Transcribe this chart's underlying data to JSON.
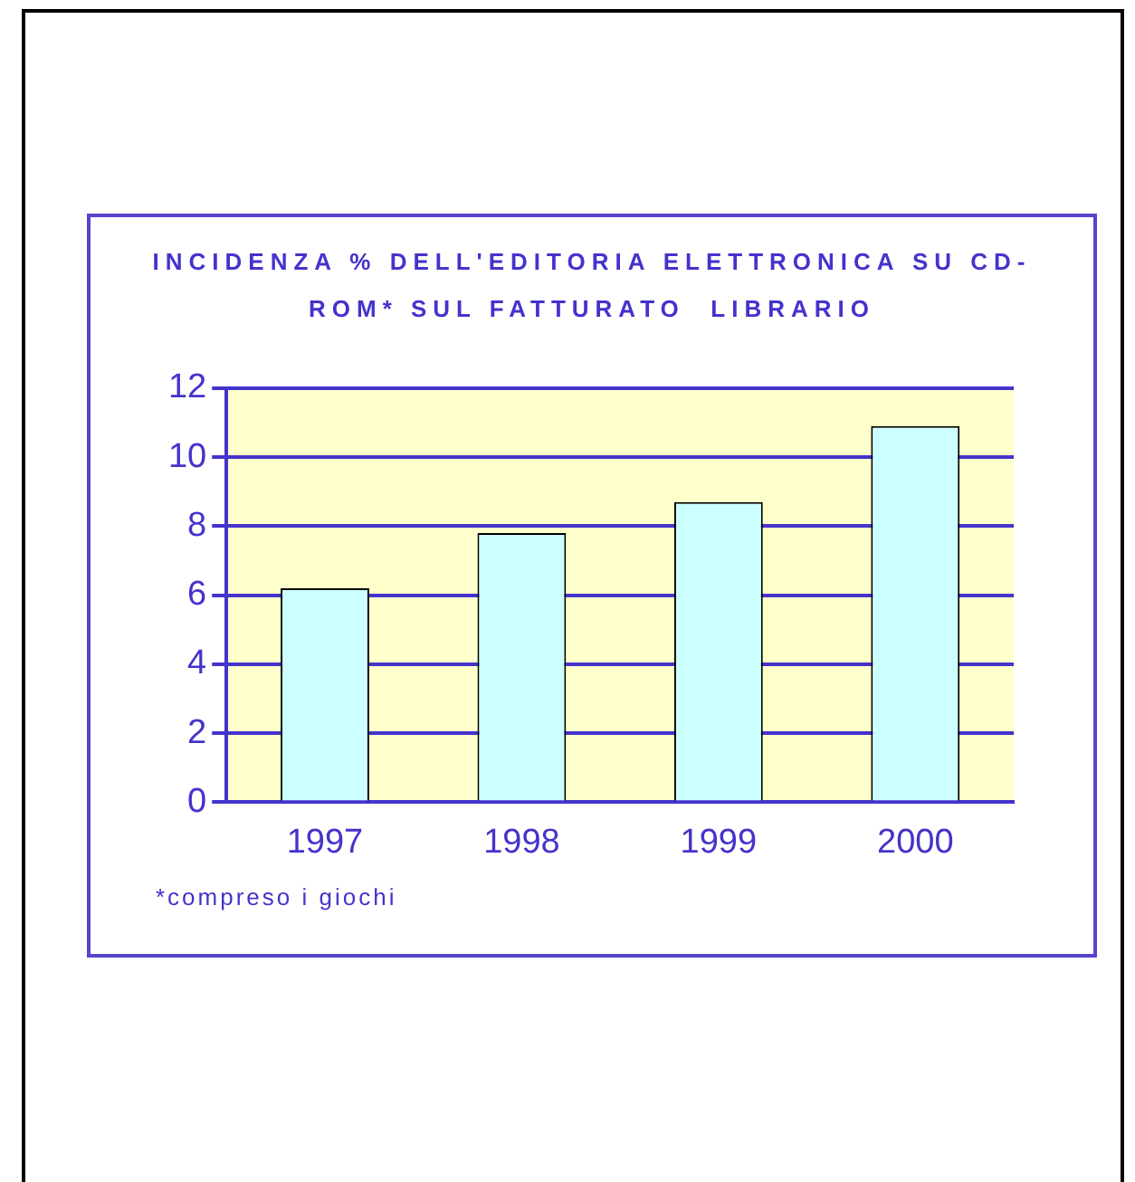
{
  "chart_data": {
    "type": "bar",
    "title": "INCIDENZA % DELL'EDITORIA ELETTRONICA SU CD-ROM* SUL FATTURATO  LIBRARIO",
    "categories": [
      "1997",
      "1998",
      "1999",
      "2000"
    ],
    "values": [
      6.2,
      7.8,
      8.7,
      10.9
    ],
    "color": "#ccffff",
    "ylim": [
      0,
      12
    ],
    "yticks": [
      0,
      2,
      4,
      6,
      8,
      10,
      12
    ],
    "grid": "y",
    "legend": false,
    "annotations": [
      "*compreso i giochi"
    ]
  }
}
